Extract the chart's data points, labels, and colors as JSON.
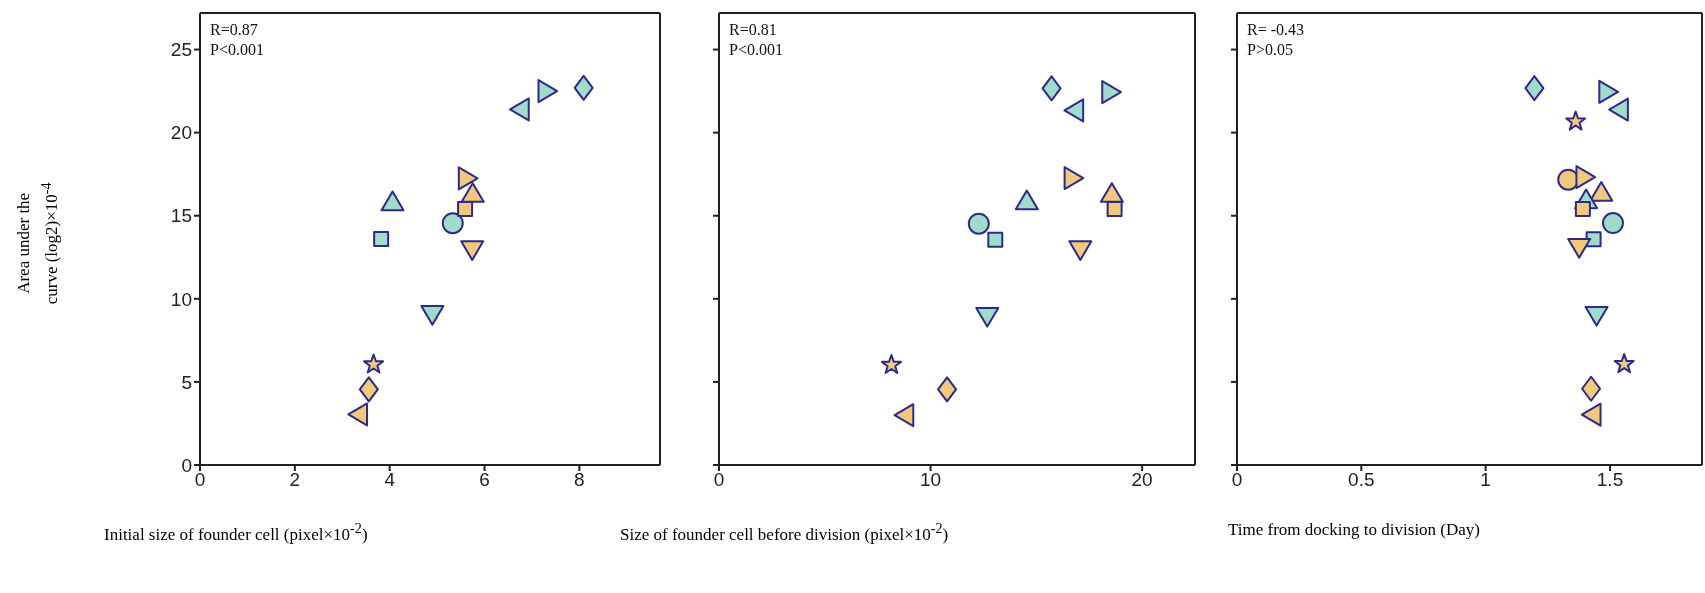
{
  "chart_data": [
    {
      "type": "scatter",
      "xlabel": "Initial size of founder cell (pixel×10$^{-2}$)",
      "ylabel": "Area under the curve (log2)×10$^{-4}$",
      "annotations": [
        "R=0.87",
        "P<0.001"
      ],
      "xlim": [
        0,
        9.7
      ],
      "xticks": [
        0,
        2,
        4,
        6,
        8
      ],
      "ylim": [
        0,
        27.2
      ],
      "yticks": [
        0,
        5,
        10,
        15,
        20,
        25
      ],
      "legend": false,
      "series": [
        {
          "color": "#a0dcc8",
          "marker": "triangle",
          "x": [
            4.06
          ],
          "values": [
            15.8
          ]
        },
        {
          "color": "#a0dcc8",
          "marker": "square",
          "x": [
            3.82
          ],
          "values": [
            13.6
          ]
        },
        {
          "color": "#a0dcc8",
          "marker": "circle",
          "x": [
            5.33
          ],
          "values": [
            14.55
          ]
        },
        {
          "color": "#a0dcc8",
          "marker": "triangle-down",
          "x": [
            4.9
          ],
          "values": [
            9.1
          ]
        },
        {
          "color": "#a0dcc8",
          "marker": "triangle-left",
          "x": [
            6.77
          ],
          "values": [
            21.4
          ]
        },
        {
          "color": "#a0dcc8",
          "marker": "triangle-right",
          "x": [
            7.3
          ],
          "values": [
            22.5
          ]
        },
        {
          "color": "#a0dcc8",
          "marker": "diamond",
          "x": [
            8.09
          ],
          "values": [
            22.7
          ]
        },
        {
          "color": "#f2c97a",
          "marker": "star",
          "x": [
            3.66
          ],
          "values": [
            6.05
          ]
        },
        {
          "color": "#f2c97a",
          "marker": "diamond",
          "x": [
            3.56
          ],
          "values": [
            4.55
          ]
        },
        {
          "color": "#f2c97a",
          "marker": "triangle-left",
          "x": [
            3.36
          ],
          "values": [
            3.04
          ]
        },
        {
          "color": "#f2c97a",
          "marker": "triangle-right",
          "x": [
            5.62
          ],
          "values": [
            17.25
          ]
        },
        {
          "color": "#f2c97a",
          "marker": "triangle",
          "x": [
            5.75
          ],
          "values": [
            16.3
          ]
        },
        {
          "color": "#f2c97a",
          "marker": "square",
          "x": [
            5.59
          ],
          "values": [
            15.4
          ]
        },
        {
          "color": "#f2c97a",
          "marker": "triangle-down",
          "x": [
            5.74
          ],
          "values": [
            13.0
          ]
        }
      ]
    },
    {
      "type": "scatter",
      "xlabel": "Size of founder cell before division (pixel×10$^{-2}$)",
      "annotations": [
        "R=0.81",
        "P<0.001"
      ],
      "xlim": [
        0,
        22.5
      ],
      "xticks": [
        0,
        10,
        20
      ],
      "ylim": [
        0,
        27.2
      ],
      "yticks": [
        0,
        5,
        10,
        15,
        20,
        25
      ],
      "tick_labels": "x",
      "legend": false,
      "series": [
        {
          "color": "#a0dcc8",
          "marker": "diamond",
          "x": [
            15.72
          ],
          "values": [
            22.67
          ]
        },
        {
          "color": "#a0dcc8",
          "marker": "triangle-right",
          "x": [
            18.48
          ],
          "values": [
            22.44
          ]
        },
        {
          "color": "#a0dcc8",
          "marker": "triangle-left",
          "x": [
            16.85
          ],
          "values": [
            21.34
          ]
        },
        {
          "color": "#a0dcc8",
          "marker": "triangle",
          "x": [
            14.55
          ],
          "values": [
            15.85
          ]
        },
        {
          "color": "#a0dcc8",
          "marker": "circle",
          "x": [
            12.28
          ],
          "values": [
            14.52
          ]
        },
        {
          "color": "#a0dcc8",
          "marker": "square",
          "x": [
            13.06
          ],
          "values": [
            13.56
          ]
        },
        {
          "color": "#a0dcc8",
          "marker": "triangle-down",
          "x": [
            12.68
          ],
          "values": [
            8.99
          ]
        },
        {
          "color": "#f2c97a",
          "marker": "triangle-right",
          "x": [
            16.7
          ],
          "values": [
            17.27
          ]
        },
        {
          "color": "#f2c97a",
          "marker": "triangle",
          "x": [
            18.57
          ],
          "values": [
            16.3
          ]
        },
        {
          "color": "#f2c97a",
          "marker": "square",
          "x": [
            18.7
          ],
          "values": [
            15.4
          ]
        },
        {
          "color": "#f2c97a",
          "marker": "triangle-down",
          "x": [
            17.08
          ],
          "values": [
            13.0
          ]
        },
        {
          "color": "#f2c97a",
          "marker": "star",
          "x": [
            8.15
          ],
          "values": [
            6.02
          ]
        },
        {
          "color": "#f2c97a",
          "marker": "diamond",
          "x": [
            10.78
          ],
          "values": [
            4.55
          ]
        },
        {
          "color": "#f2c97a",
          "marker": "triangle-left",
          "x": [
            8.82
          ],
          "values": [
            3.0
          ]
        }
      ]
    },
    {
      "type": "scatter",
      "xlabel": "Time from docking to division (Day)",
      "annotations": [
        "R= -0.43",
        "P>0.05"
      ],
      "xlim": [
        0,
        1.87
      ],
      "xticks": [
        0,
        0.5,
        1,
        1.5
      ],
      "ylim": [
        0,
        27.2
      ],
      "yticks": [
        0,
        5,
        10,
        15,
        20,
        25
      ],
      "tick_labels": "x",
      "legend": false,
      "series": [
        {
          "color": "#a0dcc8",
          "marker": "diamond",
          "x": [
            1.196
          ],
          "values": [
            22.68
          ]
        },
        {
          "color": "#a0dcc8",
          "marker": "triangle-right",
          "x": [
            1.488
          ],
          "values": [
            22.46
          ]
        },
        {
          "color": "#a0dcc8",
          "marker": "triangle-left",
          "x": [
            1.541
          ],
          "values": [
            21.39
          ]
        },
        {
          "color": "#f2c97a",
          "marker": "star",
          "x": [
            1.362,
            1.557
          ],
          "values": [
            20.67,
            6.07
          ]
        },
        {
          "color": "#f2c97a",
          "marker": "circle",
          "x": [
            1.332
          ],
          "values": [
            17.17
          ]
        },
        {
          "color": "#f2c97a",
          "marker": "triangle-right",
          "x": [
            1.396
          ],
          "values": [
            17.33
          ]
        },
        {
          "color": "#f2c97a",
          "marker": "triangle",
          "x": [
            1.465
          ],
          "values": [
            16.37
          ]
        },
        {
          "color": "#a0dcc8",
          "marker": "triangle",
          "x": [
            1.404
          ],
          "values": [
            15.92
          ]
        },
        {
          "color": "#f2c97a",
          "marker": "square",
          "x": [
            1.391
          ],
          "values": [
            15.41
          ]
        },
        {
          "color": "#a0dcc8",
          "marker": "circle",
          "x": [
            1.512
          ],
          "values": [
            14.56
          ]
        },
        {
          "color": "#a0dcc8",
          "marker": "square",
          "x": [
            1.434
          ],
          "values": [
            13.58
          ]
        },
        {
          "color": "#f2c97a",
          "marker": "triangle-down",
          "x": [
            1.376
          ],
          "values": [
            13.14
          ]
        },
        {
          "color": "#a0dcc8",
          "marker": "triangle-down",
          "x": [
            1.446
          ],
          "values": [
            9.05
          ]
        },
        {
          "color": "#f2c97a",
          "marker": "diamond",
          "x": [
            1.424
          ],
          "values": [
            4.59
          ]
        },
        {
          "color": "#f2c97a",
          "marker": "triangle-left",
          "x": [
            1.431
          ],
          "values": [
            3.03
          ]
        }
      ]
    }
  ]
}
